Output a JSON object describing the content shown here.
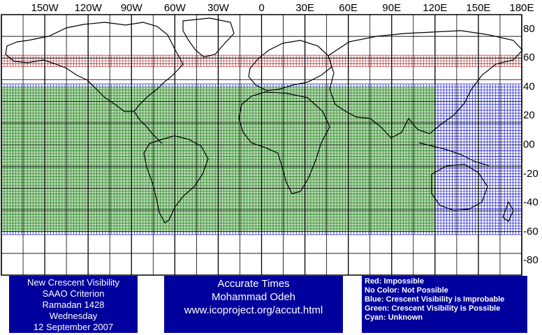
{
  "map": {
    "lon_labels": [
      "150W",
      "120W",
      "90W",
      "60W",
      "30W",
      "0",
      "30E",
      "60E",
      "90E",
      "120E",
      "150E",
      "180E"
    ],
    "lat_labels": [
      "80",
      "60",
      "40",
      "20",
      "00",
      "-20",
      "-40",
      "-60",
      "-80"
    ],
    "lon_range": [
      -180,
      180
    ],
    "lat_range": [
      -90,
      90
    ],
    "grid_step_degrees": 15,
    "cell_size_degrees": 2,
    "zones": [
      {
        "name": "Impossible",
        "color": "#b22222",
        "fill": "none",
        "lat_range": [
          55,
          62
        ],
        "lon_range": [
          -180,
          180
        ]
      },
      {
        "name": "Crescent Visibility is Improbable",
        "color": "#0000cc",
        "fill": "none",
        "lat_range": [
          -62,
          42
        ],
        "lon_range": [
          -180,
          180
        ]
      },
      {
        "name": "Crescent Visibility is Possible",
        "color": "#1b7a1b",
        "fill": "#b7d9b0",
        "lat_range": [
          -60,
          40
        ],
        "lon_range": [
          -180,
          120
        ]
      }
    ]
  },
  "info_left": {
    "lines": [
      "New Crescent Visibility",
      "SAAO Criterion",
      "Ramadan 1428",
      "Wednesday",
      "12 September 2007"
    ]
  },
  "info_mid": {
    "lines": [
      "Accurate Times",
      "Mohammad Odeh",
      "www.icoproject.org/accut.html"
    ]
  },
  "legend": {
    "lines": [
      "Red: Impossible",
      "No Color: Not Possible",
      "Blue: Crescent Visibility is Improbable",
      "Green: Crescent Visibility is Possible",
      "Cyan: Unknown"
    ]
  },
  "colors": {
    "box_background": "#00009c",
    "box_text": "#ffffff",
    "red": "#b22222",
    "blue": "#0000cc",
    "green": "#1b7a1b",
    "green_fill": "#b7d9b0"
  }
}
